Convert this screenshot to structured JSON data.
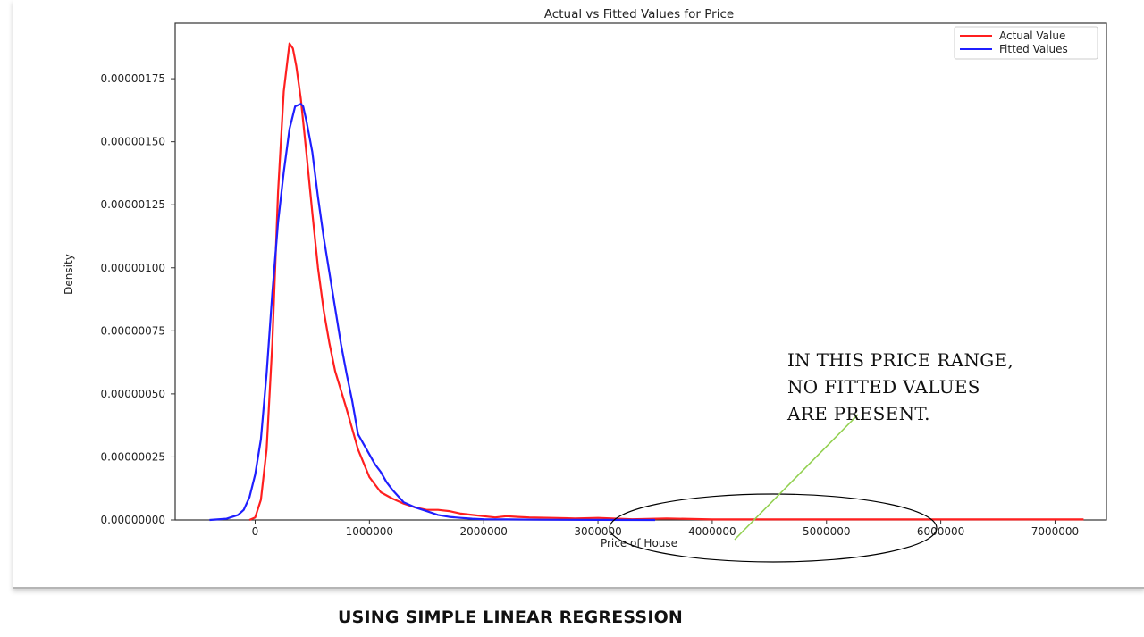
{
  "chart_data": {
    "type": "line",
    "title": "Actual vs Fitted Values for Price",
    "xlabel": "Price of House",
    "ylabel": "Density",
    "xlim": [
      -700000,
      7450000
    ],
    "ylim": [
      0,
      1.97e-06
    ],
    "xticks": [
      0,
      1000000,
      2000000,
      3000000,
      4000000,
      5000000,
      6000000,
      7000000
    ],
    "xtick_labels": [
      "0",
      "1000000",
      "2000000",
      "3000000",
      "4000000",
      "5000000",
      "6000000",
      "7000000"
    ],
    "yticks": [
      0,
      2.5e-07,
      5e-07,
      7.5e-07,
      1e-06,
      1.25e-06,
      1.5e-06,
      1.75e-06
    ],
    "ytick_labels": [
      "0.00000000",
      "0.00000025",
      "0.00000050",
      "0.00000075",
      "0.00000100",
      "0.00000125",
      "0.00000150",
      "0.00000175"
    ],
    "legend_position": "top-right",
    "series": [
      {
        "name": "Actual Value",
        "color": "#ff1f1f",
        "x": [
          -50000,
          0,
          50000,
          100000,
          150000,
          200000,
          250000,
          300000,
          330000,
          360000,
          400000,
          450000,
          500000,
          550000,
          600000,
          650000,
          700000,
          800000,
          900000,
          1000000,
          1100000,
          1200000,
          1300000,
          1400000,
          1500000,
          1600000,
          1700000,
          1800000,
          1900000,
          2000000,
          2100000,
          2200000,
          2300000,
          2400000,
          2600000,
          2800000,
          3000000,
          3300000,
          3600000,
          4000000,
          5000000,
          6000000,
          7250000
        ],
        "y": [
          0,
          1e-08,
          8e-08,
          2.8e-07,
          7e-07,
          1.3e-06,
          1.7e-06,
          1.89e-06,
          1.87e-06,
          1.8e-06,
          1.67e-06,
          1.45e-06,
          1.22e-06,
          1e-06,
          8.3e-07,
          7e-07,
          5.9e-07,
          4.4e-07,
          2.8e-07,
          1.7e-07,
          1.1e-07,
          8.5e-08,
          6.5e-08,
          5e-08,
          4e-08,
          4e-08,
          3.5e-08,
          2.5e-08,
          2e-08,
          1.5e-08,
          1e-08,
          1.5e-08,
          1.2e-08,
          1e-08,
          8e-09,
          6e-09,
          8e-09,
          3e-09,
          6e-09,
          2e-09,
          2e-09,
          2e-09,
          2e-09
        ]
      },
      {
        "name": "Fitted Values",
        "color": "#1f1fff",
        "x": [
          -400000,
          -250000,
          -150000,
          -100000,
          -50000,
          0,
          50000,
          100000,
          150000,
          200000,
          250000,
          300000,
          350000,
          400000,
          420000,
          450000,
          500000,
          550000,
          600000,
          650000,
          700000,
          750000,
          800000,
          850000,
          900000,
          1000000,
          1050000,
          1100000,
          1150000,
          1200000,
          1300000,
          1400000,
          1500000,
          1600000,
          1700000,
          1800000,
          1900000,
          2000000,
          2200000,
          2500000,
          3000000,
          3500000
        ],
        "y": [
          0,
          5e-09,
          2e-08,
          4e-08,
          9e-08,
          1.8e-07,
          3.2e-07,
          5.8e-07,
          9e-07,
          1.18e-06,
          1.38e-06,
          1.55e-06,
          1.64e-06,
          1.65e-06,
          1.64e-06,
          1.58e-06,
          1.46e-06,
          1.28e-06,
          1.12e-06,
          9.8e-07,
          8.4e-07,
          7e-07,
          5.8e-07,
          4.7e-07,
          3.4e-07,
          2.6e-07,
          2.2e-07,
          1.9e-07,
          1.5e-07,
          1.2e-07,
          7e-08,
          5e-08,
          3.5e-08,
          2e-08,
          1.2e-08,
          8e-09,
          5e-09,
          3e-09,
          2e-09,
          1e-09,
          5e-10,
          0
        ]
      }
    ],
    "annotations": {
      "callout_lines": [
        "IN THIS PRICE RANGE,",
        "NO FITTED VALUES",
        "ARE PRESENT."
      ],
      "ellipse_color": "#000000",
      "arrow_color": "#92d050"
    }
  },
  "caption": "USING SIMPLE LINEAR REGRESSION"
}
